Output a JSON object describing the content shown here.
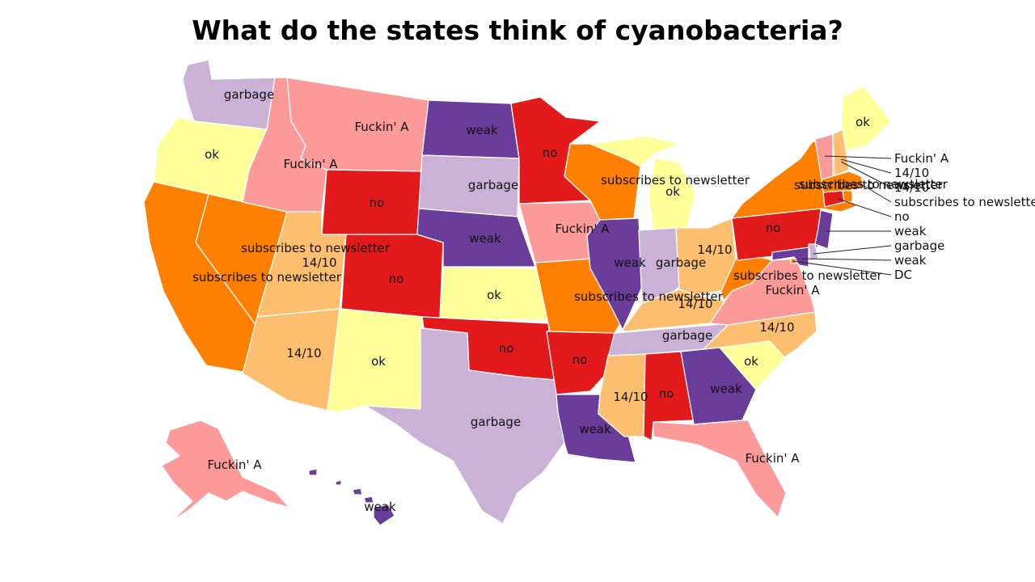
{
  "title": "What do the states think of cyanobacteria?",
  "colors": {
    "Fuckin' A": "#fb9a99",
    "no": "#e31a1c",
    "subscribes to newsletter": "#ff7f00",
    "14/10": "#fdbf6f",
    "ok": "#ffff99",
    "garbage": "#cab2d6",
    "weak": "#6a3d9a"
  },
  "states": {
    "WA": "garbage",
    "OR": "ok",
    "CA": "subscribes to newsletter",
    "NV": "subscribes to newsletter",
    "ID": "Fuckin' A",
    "MT": "Fuckin' A",
    "WY": "no",
    "UT": "14/10",
    "CO": "no",
    "AZ": "14/10",
    "NM": "ok",
    "ND": "weak",
    "SD": "garbage",
    "NE": "weak",
    "KS": "ok",
    "OK": "no",
    "TX": "garbage",
    "MN": "no",
    "IA": "Fuckin' A",
    "MO": "subscribes to newsletter",
    "AR": "no",
    "LA": "weak",
    "WI": "subscribes to newsletter",
    "MI": "ok",
    "IL": "weak",
    "IN": "garbage",
    "OH": "14/10",
    "KY": "14/10",
    "TN": "garbage",
    "MS": "14/10",
    "AL": "no",
    "GA": "weak",
    "FL": "Fuckin' A",
    "SC": "ok",
    "NC": "14/10",
    "VA": "Fuckin' A",
    "WV": "subscribes to newsletter",
    "PA": "no",
    "NY": "subscribes to newsletter",
    "ME": "ok",
    "VT": "Fuckin' A",
    "NH": "14/10",
    "MA": "subscribes to newsletter",
    "RI": "subscribes to newsletter",
    "CT": "no",
    "NJ": "weak",
    "DE": "garbage",
    "MD": "weak",
    "DC": "subscribes to newsletter",
    "AK": "Fuckin' A",
    "HI": "weak"
  },
  "callouts": [
    {
      "label": "Fuckin' A"
    },
    {
      "label": "14/10"
    },
    {
      "label": "14/10"
    },
    {
      "label": "subscribes to newsletter"
    },
    {
      "label": "no"
    },
    {
      "label": "weak"
    },
    {
      "label": "garbage"
    },
    {
      "label": "weak"
    },
    {
      "label": "DC"
    }
  ],
  "inline_labels": {
    "newsletter_ma_overflow": "subscribes to newsletter",
    "newsletter_dc_overflow": "subscribes to newsletter"
  }
}
